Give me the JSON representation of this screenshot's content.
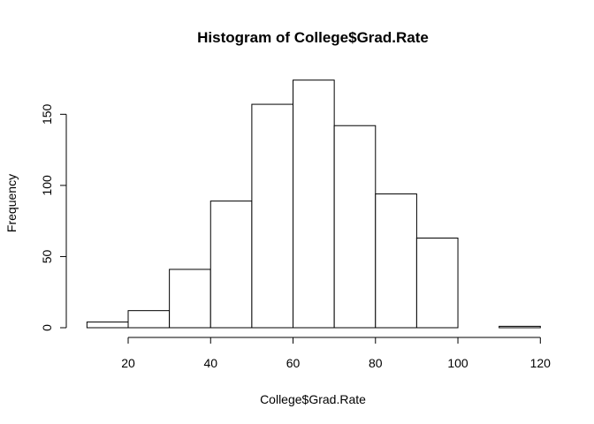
{
  "chart_data": {
    "type": "bar",
    "title": "Histogram of College$Grad.Rate",
    "xlabel": "College$Grad.Rate",
    "ylabel": "Frequency",
    "bins": [
      {
        "start": 10,
        "end": 20,
        "count": 4
      },
      {
        "start": 20,
        "end": 30,
        "count": 12
      },
      {
        "start": 30,
        "end": 40,
        "count": 41
      },
      {
        "start": 40,
        "end": 50,
        "count": 89
      },
      {
        "start": 50,
        "end": 60,
        "count": 157
      },
      {
        "start": 60,
        "end": 70,
        "count": 174
      },
      {
        "start": 70,
        "end": 80,
        "count": 142
      },
      {
        "start": 80,
        "end": 90,
        "count": 94
      },
      {
        "start": 90,
        "end": 100,
        "count": 63
      },
      {
        "start": 100,
        "end": 110,
        "count": 0
      },
      {
        "start": 110,
        "end": 120,
        "count": 1
      }
    ],
    "xticks": [
      20,
      40,
      60,
      80,
      100,
      120
    ],
    "yticks": [
      0,
      50,
      100,
      150
    ],
    "xlim": [
      10,
      120
    ],
    "ylim": [
      0,
      174
    ],
    "grid": false,
    "legend": "none",
    "colors": {
      "bar_fill": "#ffffff",
      "bar_stroke": "#000000"
    }
  }
}
